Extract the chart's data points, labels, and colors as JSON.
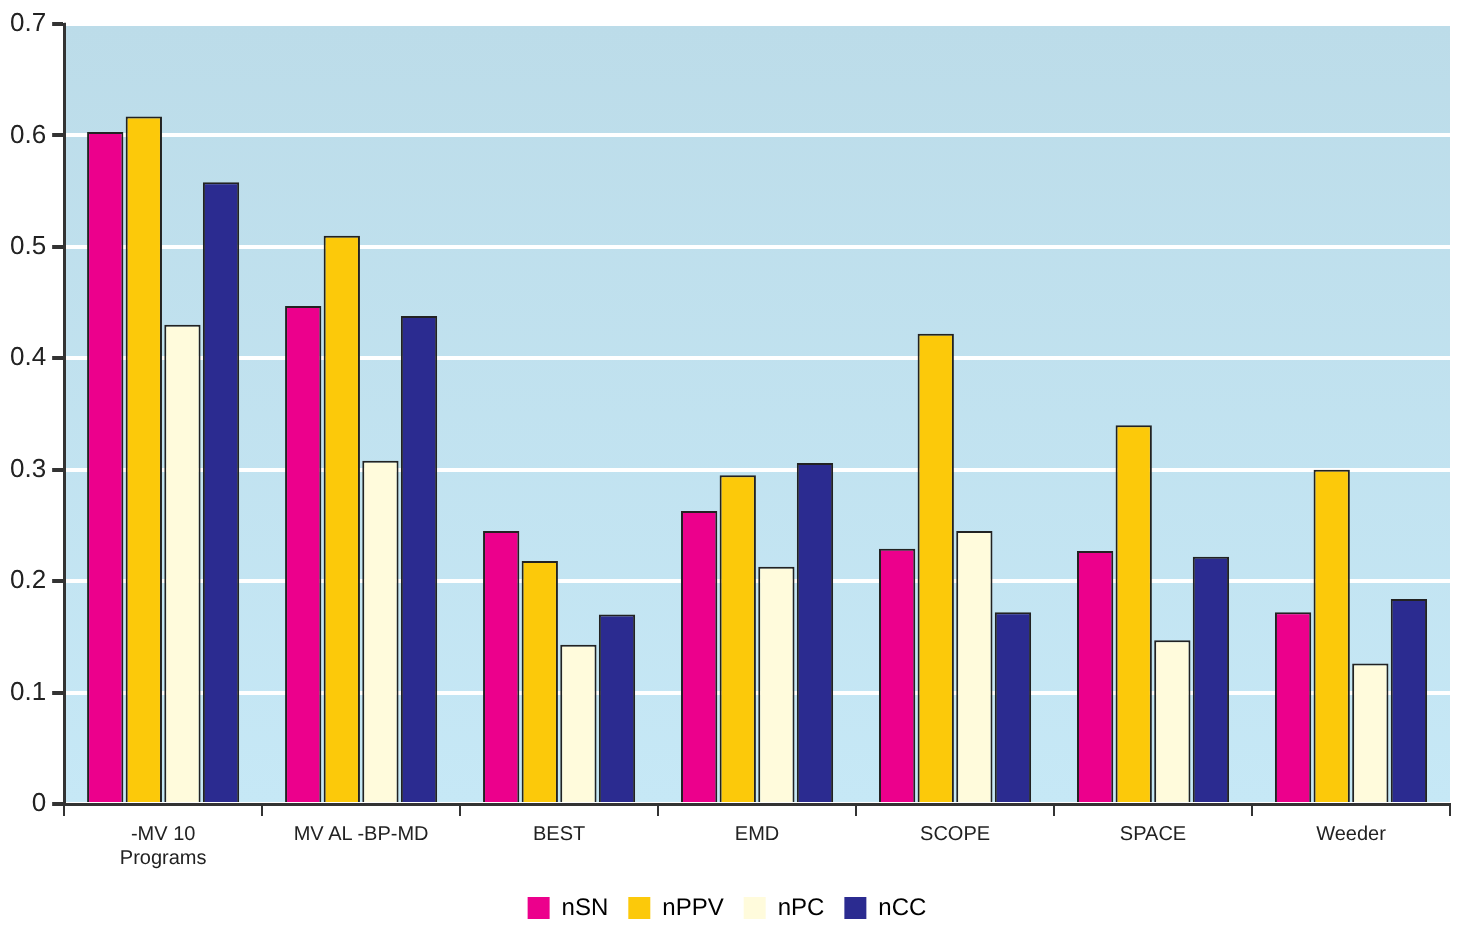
{
  "chart_data": {
    "type": "bar",
    "categories": [
      "-MV 10\nPrograms",
      "MV AL -BP-MD",
      "BEST",
      "EMD",
      "SCOPE",
      "SPACE",
      "Weeder"
    ],
    "series": [
      {
        "name": "nSN",
        "color": "#ec008c",
        "values": [
          0.603,
          0.447,
          0.245,
          0.263,
          0.229,
          0.227,
          0.172
        ]
      },
      {
        "name": "nPPV",
        "color": "#fcc90a",
        "values": [
          0.617,
          0.51,
          0.218,
          0.295,
          0.422,
          0.34,
          0.3
        ]
      },
      {
        "name": "nPC",
        "color": "#fffbdc",
        "values": [
          0.43,
          0.308,
          0.143,
          0.213,
          0.245,
          0.147,
          0.126
        ]
      },
      {
        "name": "nCC",
        "color": "#2b2b90",
        "values": [
          0.558,
          0.438,
          0.17,
          0.306,
          0.172,
          0.222,
          0.184
        ]
      }
    ],
    "ylim": [
      0,
      0.7
    ],
    "yticks": [
      0,
      0.1,
      0.2,
      0.3,
      0.4,
      0.5,
      0.6,
      0.7
    ],
    "grid": "y",
    "legend": "bottom"
  }
}
